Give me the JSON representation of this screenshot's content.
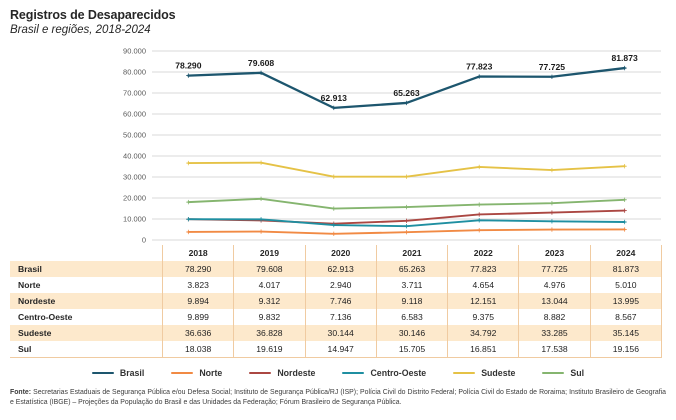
{
  "header": {
    "title": "Registros de Desaparecidos",
    "subtitle": "Brasil e regiões, 2018-2024"
  },
  "chart_data": {
    "type": "line",
    "categories": [
      "2018",
      "2019",
      "2020",
      "2021",
      "2022",
      "2023",
      "2024"
    ],
    "series": [
      {
        "name": "Brasil",
        "color": "#1d566e",
        "values": [
          78290,
          79608,
          62913,
          65263,
          77823,
          77725,
          81873
        ],
        "data_labels": [
          "78.290",
          "79.608",
          "62.913",
          "65.263",
          "77.823",
          "77.725",
          "81.873"
        ]
      },
      {
        "name": "Norte",
        "color": "#f18a44",
        "values": [
          3823,
          4017,
          2940,
          3711,
          4654,
          4976,
          5010
        ]
      },
      {
        "name": "Nordeste",
        "color": "#ab4742",
        "values": [
          9894,
          9312,
          7746,
          9118,
          12151,
          13044,
          13995
        ]
      },
      {
        "name": "Centro-Oeste",
        "color": "#1f8fa1",
        "values": [
          9899,
          9832,
          7136,
          6583,
          9375,
          8882,
          8567
        ]
      },
      {
        "name": "Sudeste",
        "color": "#e5c246",
        "values": [
          36636,
          36828,
          30144,
          30146,
          34792,
          33285,
          35145
        ]
      },
      {
        "name": "Sul",
        "color": "#85b56f",
        "values": [
          18038,
          19619,
          14947,
          15705,
          16851,
          17538,
          19156
        ]
      }
    ],
    "title": "Registros de Desaparecidos",
    "subtitle": "Brasil e regiões, 2018-2024",
    "xlabel": "",
    "ylabel": "",
    "ylim": [
      0,
      90000
    ],
    "ytick_step": 10000,
    "ytick_labels": [
      "0",
      "10.000",
      "20.000",
      "30.000",
      "40.000",
      "50.000",
      "60.000",
      "70.000",
      "80.000",
      "90.000"
    ],
    "grid": true,
    "legend_position": "bottom",
    "data_labels_on": "Brasil"
  },
  "table": {
    "header": [
      "",
      "2018",
      "2019",
      "2020",
      "2021",
      "2022",
      "2023",
      "2024"
    ],
    "rows": [
      {
        "label": "Brasil",
        "striped": true,
        "values": [
          "78.290",
          "79.608",
          "62.913",
          "65.263",
          "77.823",
          "77.725",
          "81.873"
        ]
      },
      {
        "label": "Norte",
        "striped": false,
        "values": [
          "3.823",
          "4.017",
          "2.940",
          "3.711",
          "4.654",
          "4.976",
          "5.010"
        ]
      },
      {
        "label": "Nordeste",
        "striped": true,
        "values": [
          "9.894",
          "9.312",
          "7.746",
          "9.118",
          "12.151",
          "13.044",
          "13.995"
        ]
      },
      {
        "label": "Centro-Oeste",
        "striped": false,
        "values": [
          "9.899",
          "9.832",
          "7.136",
          "6.583",
          "9.375",
          "8.882",
          "8.567"
        ]
      },
      {
        "label": "Sudeste",
        "striped": true,
        "values": [
          "36.636",
          "36.828",
          "30.144",
          "30.146",
          "34.792",
          "33.285",
          "35.145"
        ]
      },
      {
        "label": "Sul",
        "striped": false,
        "values": [
          "18.038",
          "19.619",
          "14.947",
          "15.705",
          "16.851",
          "17.538",
          "19.156"
        ]
      }
    ]
  },
  "legend": {
    "items": [
      {
        "label": "Brasil",
        "color": "#1d566e"
      },
      {
        "label": "Norte",
        "color": "#f18a44"
      },
      {
        "label": "Nordeste",
        "color": "#ab4742"
      },
      {
        "label": "Centro-Oeste",
        "color": "#1f8fa1"
      },
      {
        "label": "Sudeste",
        "color": "#e5c246"
      },
      {
        "label": "Sul",
        "color": "#85b56f"
      }
    ]
  },
  "footer": {
    "source_label": "Fonte:",
    "source_text": " Secretarias Estaduais de Segurança Pública e/ou Defesa Social; Instituto de Segurança Pública/RJ (ISP); Polícia Civil do Distrito Federal; Polícia Civil do Estado de Roraima; Instituto Brasileiro de Geografia e Estatística (IBGE) – Projeções da População do Brasil e das Unidades da Federação; Fórum Brasileiro de Segurança Pública."
  },
  "colors": {
    "grid_line": "#d9d9d9",
    "table_border": "#f0cba1",
    "row_stripe": "#fde9cc",
    "axis_label": "#595959"
  }
}
